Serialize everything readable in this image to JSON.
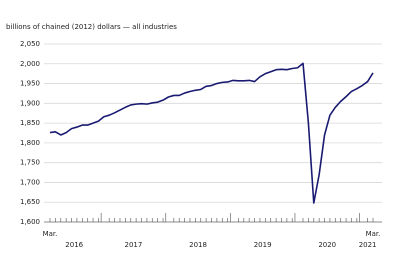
{
  "chart_data": {
    "type": "line",
    "y_axis_label": "billions of chained (2012) dollars — all industries",
    "categories": [
      "2016-03",
      "2016-04",
      "2016-05",
      "2016-06",
      "2016-07",
      "2016-08",
      "2016-09",
      "2016-10",
      "2016-11",
      "2016-12",
      "2017-01",
      "2017-02",
      "2017-03",
      "2017-04",
      "2017-05",
      "2017-06",
      "2017-07",
      "2017-08",
      "2017-09",
      "2017-10",
      "2017-11",
      "2017-12",
      "2018-01",
      "2018-02",
      "2018-03",
      "2018-04",
      "2018-05",
      "2018-06",
      "2018-07",
      "2018-08",
      "2018-09",
      "2018-10",
      "2018-11",
      "2018-12",
      "2019-01",
      "2019-02",
      "2019-03",
      "2019-04",
      "2019-05",
      "2019-06",
      "2019-07",
      "2019-08",
      "2019-09",
      "2019-10",
      "2019-11",
      "2019-12",
      "2020-01",
      "2020-02",
      "2020-03",
      "2020-04",
      "2020-05",
      "2020-06",
      "2020-07",
      "2020-08",
      "2020-09",
      "2020-10",
      "2020-11",
      "2020-12",
      "2021-01",
      "2021-02",
      "2021-03"
    ],
    "values": [
      1826,
      1828,
      1820,
      1826,
      1836,
      1840,
      1845,
      1845,
      1850,
      1855,
      1866,
      1870,
      1876,
      1883,
      1890,
      1896,
      1898,
      1899,
      1898,
      1901,
      1903,
      1908,
      1916,
      1920,
      1920,
      1926,
      1930,
      1933,
      1935,
      1943,
      1945,
      1950,
      1953,
      1954,
      1958,
      1957,
      1957,
      1958,
      1955,
      1967,
      1975,
      1980,
      1985,
      1986,
      1985,
      1988,
      1990,
      2001,
      1850,
      1648,
      1720,
      1820,
      1870,
      1890,
      1905,
      1917,
      1930,
      1937,
      1945,
      1955,
      1977
    ],
    "color": "#1a1a72",
    "first_month_label": "Mar.",
    "last_month_label": "Mar.",
    "year_labels": [
      "2016",
      "2017",
      "2018",
      "2019",
      "2020",
      "2021"
    ],
    "ylim": [
      1600,
      2050
    ],
    "yticks": [
      {
        "value": 1600,
        "label": "1,600"
      },
      {
        "value": 1650,
        "label": "1,650"
      },
      {
        "value": 1700,
        "label": "1,700"
      },
      {
        "value": 1750,
        "label": "1,750"
      },
      {
        "value": 1800,
        "label": "1,800"
      },
      {
        "value": 1850,
        "label": "1,850"
      },
      {
        "value": 1900,
        "label": "1,900"
      },
      {
        "value": 1950,
        "label": "1,950"
      },
      {
        "value": 2000,
        "label": "2,000"
      },
      {
        "value": 2050,
        "label": "2,050"
      }
    ],
    "grid": true
  }
}
